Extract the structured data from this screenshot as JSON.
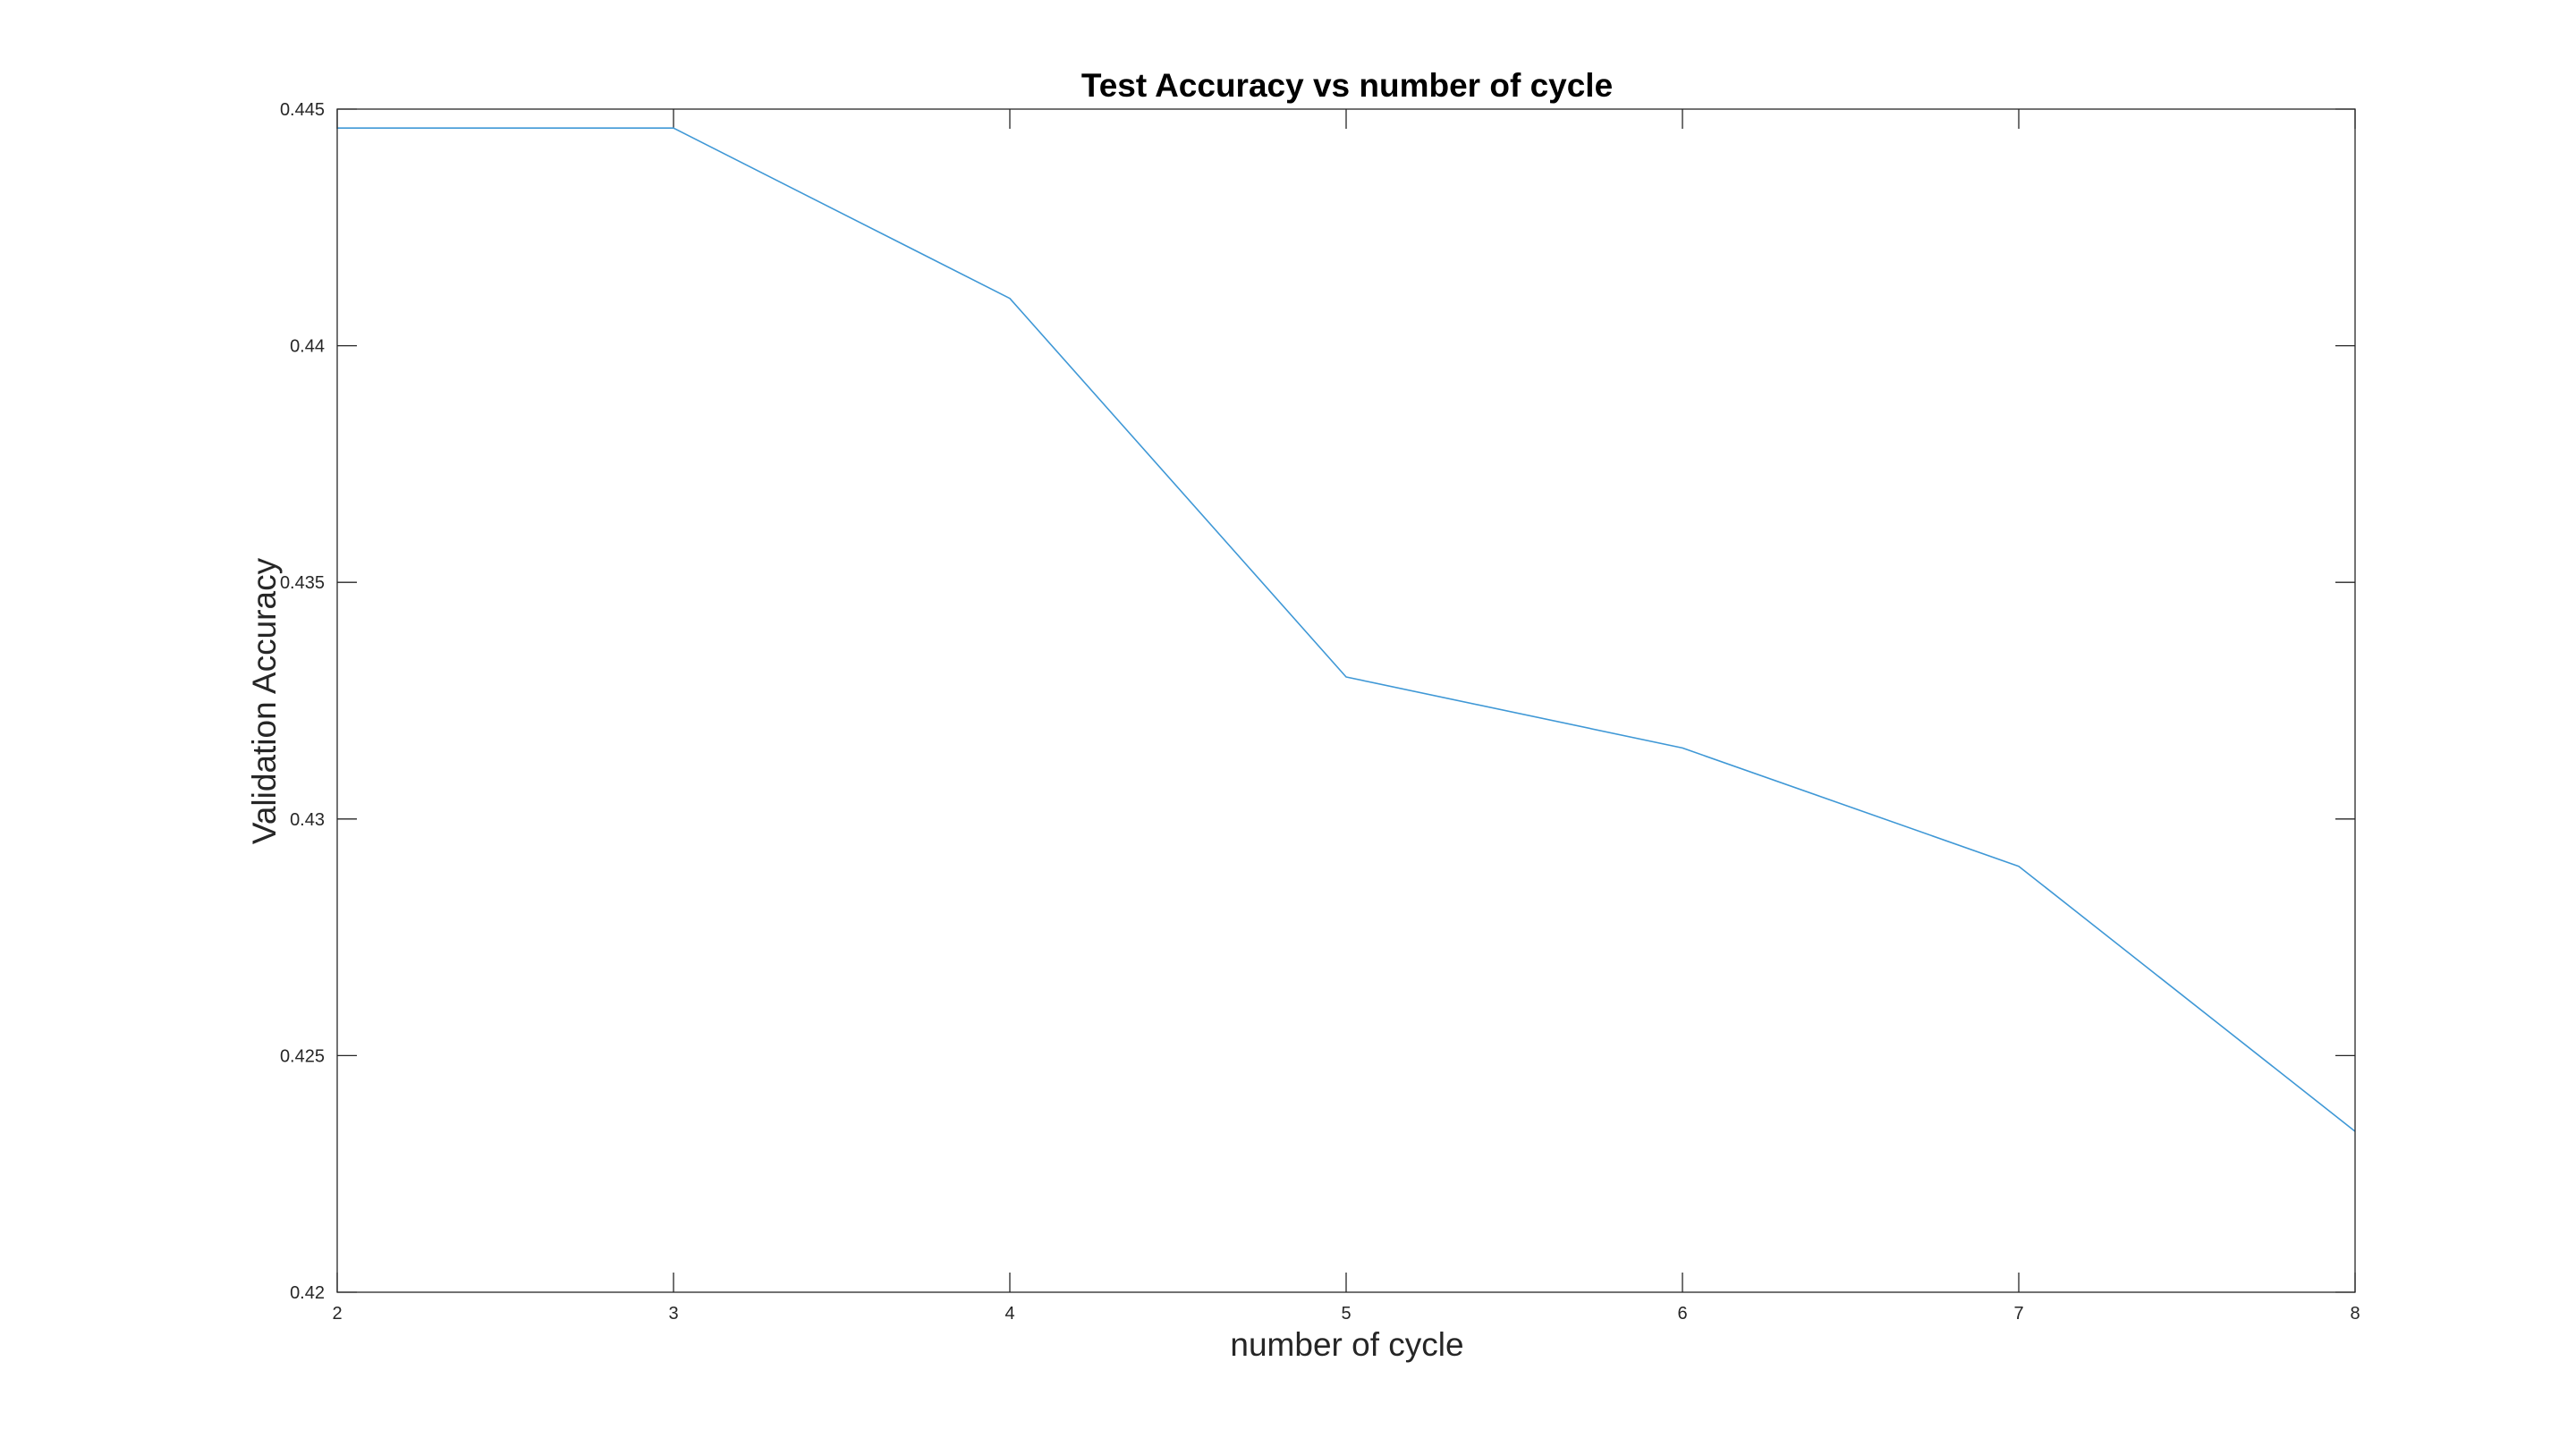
{
  "chart_data": {
    "type": "line",
    "title": "Test Accuracy vs number of cycle",
    "xlabel": "number of cycle",
    "ylabel": "Validation Accuracy",
    "xlim": [
      2,
      8
    ],
    "ylim": [
      0.42,
      0.445
    ],
    "x_ticks": [
      "2",
      "3",
      "4",
      "5",
      "6",
      "7",
      "8"
    ],
    "y_ticks": [
      "0.42",
      "0.425",
      "0.43",
      "0.435",
      "0.44",
      "0.445"
    ],
    "grid": false,
    "box": true,
    "series": [
      {
        "color": "#3f98d6",
        "x": [
          2,
          3,
          4,
          5,
          6,
          7,
          8
        ],
        "y": [
          0.4446,
          0.4446,
          0.441,
          0.433,
          0.4315,
          0.429,
          0.4234
        ]
      }
    ]
  }
}
